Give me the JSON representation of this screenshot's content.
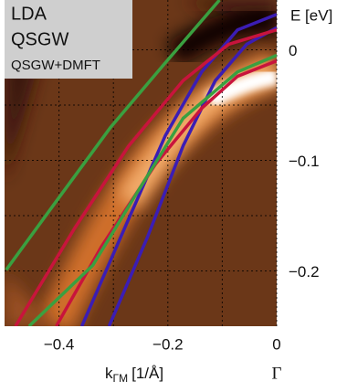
{
  "chart_data": {
    "type": "line",
    "y_label": "E [eV]",
    "x_label": "k",
    "x_label_sub": "ΓM",
    "x_label_unit": "[1/Å]",
    "x_point_label": "Γ",
    "xlim": [
      -0.5,
      0
    ],
    "ylim": [
      -0.25,
      0.045
    ],
    "xticks": [
      {
        "value": -0.4,
        "label": "−0.4"
      },
      {
        "value": -0.2,
        "label": "−0.2"
      },
      0
    ],
    "yticks": [
      0,
      {
        "value": -0.1,
        "label": "−0.1"
      },
      {
        "value": -0.2,
        "label": "−0.2"
      }
    ],
    "minor_xticks": [
      -0.3,
      -0.1
    ],
    "minor_yticks": [
      -0.05,
      -0.15
    ],
    "grid": true,
    "legend": "upper left",
    "series": [
      {
        "name": "LDA",
        "color": "#3b1db4",
        "bands": [
          {
            "x": [
              -0.358,
              -0.272,
              -0.205,
              -0.138,
              -0.072,
              0
            ],
            "values": [
              -0.25,
              -0.153,
              -0.078,
              -0.02,
              0.018,
              0.032
            ]
          },
          {
            "x": [
              -0.308,
              -0.238,
              -0.172,
              -0.113,
              -0.055,
              0
            ],
            "values": [
              -0.25,
              -0.17,
              -0.087,
              -0.028,
              0.005,
              0.02
            ]
          }
        ]
      },
      {
        "name": "QSGW",
        "color": "#c8143c",
        "bands": [
          {
            "x": [
              -0.48,
              -0.372,
              -0.272,
              -0.172,
              -0.088,
              0
            ],
            "values": [
              -0.25,
              -0.162,
              -0.087,
              -0.028,
              0.005,
              0.018
            ]
          },
          {
            "x": [
              -0.405,
              -0.322,
              -0.222,
              -0.138,
              -0.072,
              0
            ],
            "values": [
              -0.25,
              -0.178,
              -0.103,
              -0.053,
              -0.024,
              -0.01
            ]
          }
        ]
      },
      {
        "name": "QSGW+DMFT",
        "color": "#3aa040",
        "bands": [
          {
            "x": [
              -0.497,
              -0.405,
              -0.305,
              -0.205,
              -0.105
            ],
            "values": [
              -0.199,
              -0.137,
              -0.07,
              -0.012,
              0.045
            ]
          },
          {
            "x": [
              -0.455,
              -0.338,
              -0.255,
              -0.172,
              -0.072,
              0
            ],
            "values": [
              -0.25,
              -0.195,
              -0.128,
              -0.062,
              -0.02,
              -0.005
            ]
          }
        ]
      }
    ]
  }
}
